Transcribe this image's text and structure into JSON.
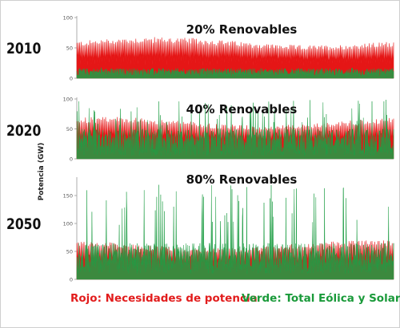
{
  "chart_data": [
    {
      "type": "area",
      "title": "20% Renovables",
      "year_label": "2010",
      "ylim": [
        0,
        100
      ],
      "yticks": [
        0,
        50,
        100
      ],
      "series": [
        {
          "name": "Rojo: Necesidades de potencia",
          "color": "#e51616",
          "base": 20,
          "peak": 66
        },
        {
          "name": "Verde: Total Eólica y Solar",
          "color": "#1f9e45",
          "base": 2,
          "peak": 18
        }
      ]
    },
    {
      "type": "area",
      "title": "40% Renovables",
      "year_label": "2020",
      "ylim": [
        0,
        100
      ],
      "yticks": [
        0,
        50,
        100
      ],
      "series": [
        {
          "name": "Rojo: Necesidades de potencia",
          "color": "#e51616",
          "base": 22,
          "peak": 68
        },
        {
          "name": "Verde: Total Eólica y Solar",
          "color": "#1f9e45",
          "base": 5,
          "peak": 100
        }
      ]
    },
    {
      "type": "area",
      "title": "80% Renovables",
      "year_label": "2050",
      "ylim": [
        0,
        180
      ],
      "yticks": [
        0,
        50,
        100,
        150
      ],
      "series": [
        {
          "name": "Rojo: Necesidades de potencia",
          "color": "#e51616",
          "base": 20,
          "peak": 68
        },
        {
          "name": "Verde: Total Eólica y Solar",
          "color": "#1f9e45",
          "base": 10,
          "peak": 170
        }
      ]
    }
  ],
  "ylabel": "Potencia (GW)",
  "legend": {
    "red": "Rojo: Necesidades de potencia",
    "green": "Verde: Total Eólica y Solar"
  }
}
